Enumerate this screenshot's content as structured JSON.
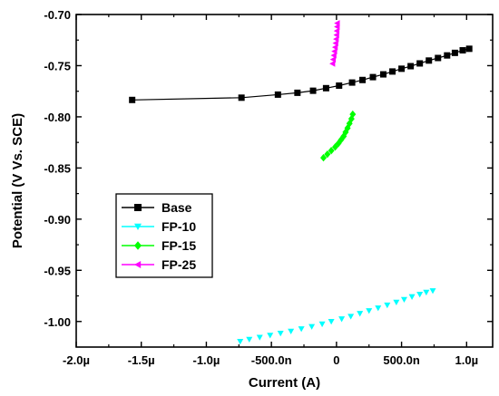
{
  "chart_data": {
    "type": "scatter",
    "xlabel": "Current (A)",
    "ylabel": "Potential (V Vs. SCE)",
    "xlim": [
      -2e-06,
      1.2e-06
    ],
    "ylim": [
      -1.025,
      -0.7
    ],
    "x_ticks": [
      {
        "value": -2e-06,
        "label": "-2.0µ"
      },
      {
        "value": -1.5e-06,
        "label": "-1.5µ"
      },
      {
        "value": -1e-06,
        "label": "-1.0µ"
      },
      {
        "value": -5e-07,
        "label": "-500.0n"
      },
      {
        "value": 0,
        "label": "0"
      },
      {
        "value": 5e-07,
        "label": "500.0n"
      },
      {
        "value": 1e-06,
        "label": "1.0µ"
      }
    ],
    "y_ticks": [
      {
        "value": -0.7,
        "label": "-0.70"
      },
      {
        "value": -0.75,
        "label": "-0.75"
      },
      {
        "value": -0.8,
        "label": "-0.80"
      },
      {
        "value": -0.85,
        "label": "-0.85"
      },
      {
        "value": -0.9,
        "label": "-0.90"
      },
      {
        "value": -0.95,
        "label": "-0.95"
      },
      {
        "value": -1.0,
        "label": "-1.00"
      }
    ],
    "legend_position": "left",
    "series": [
      {
        "name": "Base",
        "color": "#000000",
        "marker": "square",
        "line": true,
        "points": [
          [
            -1.57e-06,
            -0.7835
          ],
          [
            -7.3e-07,
            -0.7813
          ],
          [
            -4.5e-07,
            -0.7783
          ],
          [
            -3e-07,
            -0.7765
          ],
          [
            -1.8e-07,
            -0.7745
          ],
          [
            -8e-08,
            -0.772
          ],
          [
            2e-08,
            -0.7695
          ],
          [
            1.2e-07,
            -0.7665
          ],
          [
            2e-07,
            -0.764
          ],
          [
            2.8e-07,
            -0.7612
          ],
          [
            3.6e-07,
            -0.7585
          ],
          [
            4.3e-07,
            -0.7557
          ],
          [
            5e-07,
            -0.753
          ],
          [
            5.7e-07,
            -0.7505
          ],
          [
            6.4e-07,
            -0.7478
          ],
          [
            7.1e-07,
            -0.745
          ],
          [
            7.8e-07,
            -0.7425
          ],
          [
            8.5e-07,
            -0.74
          ],
          [
            9.1e-07,
            -0.7375
          ],
          [
            9.7e-07,
            -0.735
          ],
          [
            1.02e-06,
            -0.7335
          ]
        ]
      },
      {
        "name": "FP-10",
        "color": "#00ffff",
        "marker": "triangle-down",
        "line": false,
        "points": [
          [
            -7.4e-07,
            -1.0195
          ],
          [
            -6.7e-07,
            -1.0175
          ],
          [
            -5.9e-07,
            -1.0155
          ],
          [
            -5.1e-07,
            -1.0135
          ],
          [
            -4.3e-07,
            -1.0115
          ],
          [
            -3.5e-07,
            -1.0095
          ],
          [
            -2.7e-07,
            -1.0072
          ],
          [
            -1.9e-07,
            -1.005
          ],
          [
            -1.1e-07,
            -1.0025
          ],
          [
            -4e-08,
            -1.0
          ],
          [
            4e-08,
            -0.9975
          ],
          [
            1.1e-07,
            -0.995
          ],
          [
            1.8e-07,
            -0.9922
          ],
          [
            2.5e-07,
            -0.9895
          ],
          [
            3.2e-07,
            -0.9868
          ],
          [
            3.9e-07,
            -0.984
          ],
          [
            4.6e-07,
            -0.9812
          ],
          [
            5.2e-07,
            -0.9785
          ],
          [
            5.8e-07,
            -0.9758
          ],
          [
            6.4e-07,
            -0.9735
          ],
          [
            6.9e-07,
            -0.9715
          ],
          [
            7.4e-07,
            -0.97
          ]
        ]
      },
      {
        "name": "FP-15",
        "color": "#00ff00",
        "marker": "diamond",
        "line": false,
        "points": [
          [
            -1e-07,
            -0.84
          ],
          [
            -7e-08,
            -0.8365
          ],
          [
            -4e-08,
            -0.833
          ],
          [
            -1e-08,
            -0.8295
          ],
          [
            1.5e-08,
            -0.826
          ],
          [
            3.5e-08,
            -0.8225
          ],
          [
            5.5e-08,
            -0.819
          ],
          [
            7e-08,
            -0.815
          ],
          [
            8.5e-08,
            -0.811
          ],
          [
            1e-07,
            -0.8065
          ],
          [
            1.15e-07,
            -0.802
          ],
          [
            1.25e-07,
            -0.7975
          ]
        ]
      },
      {
        "name": "FP-25",
        "color": "#ff00ff",
        "marker": "triangle-left",
        "line": false,
        "points": [
          [
            -3e-08,
            -0.748
          ],
          [
            -2.5e-08,
            -0.744
          ],
          [
            -2e-08,
            -0.74
          ],
          [
            -1.5e-08,
            -0.736
          ],
          [
            -1e-08,
            -0.732
          ],
          [
            -6e-09,
            -0.728
          ],
          [
            -2e-09,
            -0.724
          ],
          [
            1e-09,
            -0.72
          ],
          [
            3e-09,
            -0.716
          ],
          [
            5e-09,
            -0.712
          ],
          [
            6e-09,
            -0.7085
          ]
        ]
      }
    ]
  }
}
